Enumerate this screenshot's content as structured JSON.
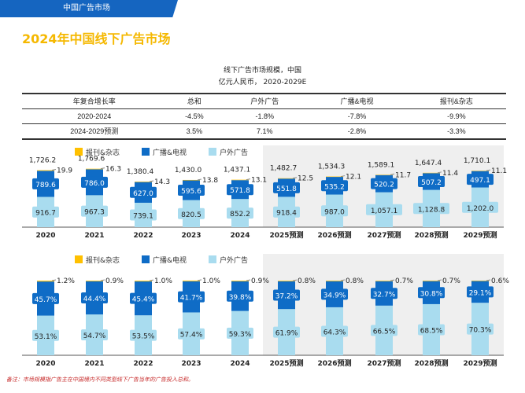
{
  "header": {
    "section": "中国广告市场",
    "title": "2024年中国线下广告市场"
  },
  "table": {
    "title_line1": "线下广告市场规模，中国",
    "title_line2": "亿元人民币， 2020-2029E",
    "headers": [
      "年复合增长率",
      "总和",
      "户外广告",
      "广播&电视",
      "报刊&杂志"
    ],
    "rows": [
      [
        "2020-2024",
        "-4.5%",
        "-1.8%",
        "-7.8%",
        "-9.9%"
      ],
      [
        "2024-2029预测",
        "3.5%",
        "7.1%",
        "-2.8%",
        "-3.3%"
      ]
    ]
  },
  "colors": {
    "print": "#ffc000",
    "tv": "#0f6cc6",
    "outdoor": "#a9dcef",
    "shade": "#efefef"
  },
  "chart_data": [
    {
      "type": "bar",
      "stacked": true,
      "categories": [
        "2020",
        "2021",
        "2022",
        "2023",
        "2024",
        "2025预测",
        "2026预测",
        "2027预测",
        "2028预测",
        "2029预测"
      ],
      "series": [
        {
          "name": "户外广告",
          "values": [
            916.7,
            967.3,
            739.1,
            820.5,
            852.2,
            918.4,
            987.0,
            1057.1,
            1128.8,
            1202.0
          ]
        },
        {
          "name": "广播&电视",
          "values": [
            789.6,
            786.0,
            627.0,
            595.6,
            571.8,
            551.8,
            535.2,
            520.2,
            507.2,
            497.1
          ]
        },
        {
          "name": "报刊&杂志",
          "values": [
            19.9,
            16.3,
            14.3,
            13.8,
            13.1,
            12.5,
            12.1,
            11.7,
            11.4,
            11.1
          ]
        }
      ],
      "totals": [
        "1,726.2",
        "1,769.6",
        "1,380.4",
        "1,430.0",
        "1,437.1",
        "1,482.7",
        "1,534.3",
        "1,589.1",
        "1,647.4",
        "1,710.1"
      ],
      "labels": [
        [
          "916.7",
          "967.3",
          "739.1",
          "820.5",
          "852.2",
          "918.4",
          "987.0",
          "1,057.1",
          "1,128.8",
          "1,202.0"
        ],
        [
          "789.6",
          "786.0",
          "627.0",
          "595.6",
          "571.8",
          "551.8",
          "535.2",
          "520.2",
          "507.2",
          "497.1"
        ],
        [
          "19.9",
          "16.3",
          "14.3",
          "13.8",
          "13.1",
          "12.5",
          "12.1",
          "11.7",
          "11.4",
          "11.1"
        ]
      ],
      "legend": [
        "报刊&杂志",
        "广播&电视",
        "户外广告"
      ],
      "legend_position": "top",
      "forecast_shaded_from": "2025预测"
    },
    {
      "type": "bar",
      "stacked": true,
      "percent": true,
      "categories": [
        "2020",
        "2021",
        "2022",
        "2023",
        "2024",
        "2025预测",
        "2026预测",
        "2027预测",
        "2028预测",
        "2029预测"
      ],
      "series": [
        {
          "name": "户外广告",
          "values": [
            53.1,
            54.7,
            53.5,
            57.4,
            59.3,
            61.9,
            64.3,
            66.5,
            68.5,
            70.3
          ]
        },
        {
          "name": "广播&电视",
          "values": [
            45.7,
            44.4,
            45.4,
            41.7,
            39.8,
            37.2,
            34.9,
            32.7,
            30.8,
            29.1
          ]
        },
        {
          "name": "报刊&杂志",
          "values": [
            1.2,
            0.9,
            1.0,
            1.0,
            0.9,
            0.8,
            0.8,
            0.7,
            0.7,
            0.6
          ]
        }
      ],
      "labels": [
        [
          "53.1%",
          "54.7%",
          "53.5%",
          "57.4%",
          "59.3%",
          "61.9%",
          "64.3%",
          "66.5%",
          "68.5%",
          "70.3%"
        ],
        [
          "45.7%",
          "44.4%",
          "45.4%",
          "41.7%",
          "39.8%",
          "37.2%",
          "34.9%",
          "32.7%",
          "30.8%",
          "29.1%"
        ],
        [
          "1.2%",
          "0.9%",
          "1.0%",
          "1.0%",
          "0.9%",
          "0.8%",
          "0.8%",
          "0.7%",
          "0.7%",
          "0.6%"
        ]
      ],
      "legend": [
        "报刊&杂志",
        "广播&电视",
        "户外广告"
      ],
      "legend_position": "top",
      "forecast_shaded_from": "2025预测"
    }
  ],
  "note": "备注：市场规模指广告主在中国境内不同类型线下广告当年的广告投入总和。"
}
